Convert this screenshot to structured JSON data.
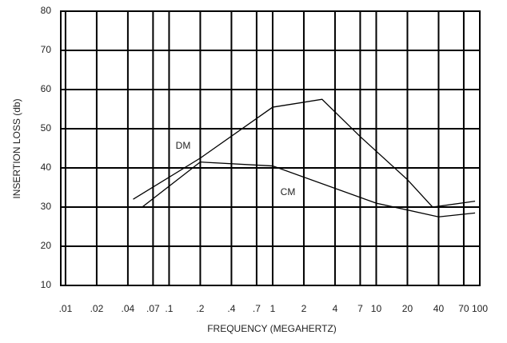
{
  "chart_data": {
    "type": "line",
    "xlabel": "FREQUENCY (MEGAHERTZ)",
    "ylabel": "INSERTION LOSS (db)",
    "xscale": "log",
    "xlim": [
      0.009,
      100
    ],
    "ylim": [
      10,
      80
    ],
    "yticks": [
      10,
      20,
      30,
      40,
      50,
      60,
      70,
      80
    ],
    "xticks": [
      {
        "value": 0.01,
        "label": ".01"
      },
      {
        "value": 0.02,
        "label": ".02"
      },
      {
        "value": 0.04,
        "label": ".04"
      },
      {
        "value": 0.07,
        "label": ".07"
      },
      {
        "value": 0.1,
        "label": ".1"
      },
      {
        "value": 0.2,
        "label": ".2"
      },
      {
        "value": 0.4,
        "label": ".4"
      },
      {
        "value": 0.7,
        "label": ".7"
      },
      1,
      2,
      4,
      7,
      10,
      20,
      40,
      70,
      100
    ],
    "grid": true,
    "series": [
      {
        "name": "DM",
        "color": "#000000",
        "x": [
          0.045,
          0.2,
          1,
          3,
          7,
          20,
          35,
          90
        ],
        "values": [
          32,
          42.5,
          55.5,
          57.5,
          48,
          37,
          30,
          31.5
        ]
      },
      {
        "name": "CM",
        "color": "#000000",
        "x": [
          0.055,
          0.2,
          1,
          10,
          40,
          90
        ],
        "values": [
          30,
          41.5,
          40.5,
          31,
          27.5,
          28.5
        ]
      }
    ]
  }
}
